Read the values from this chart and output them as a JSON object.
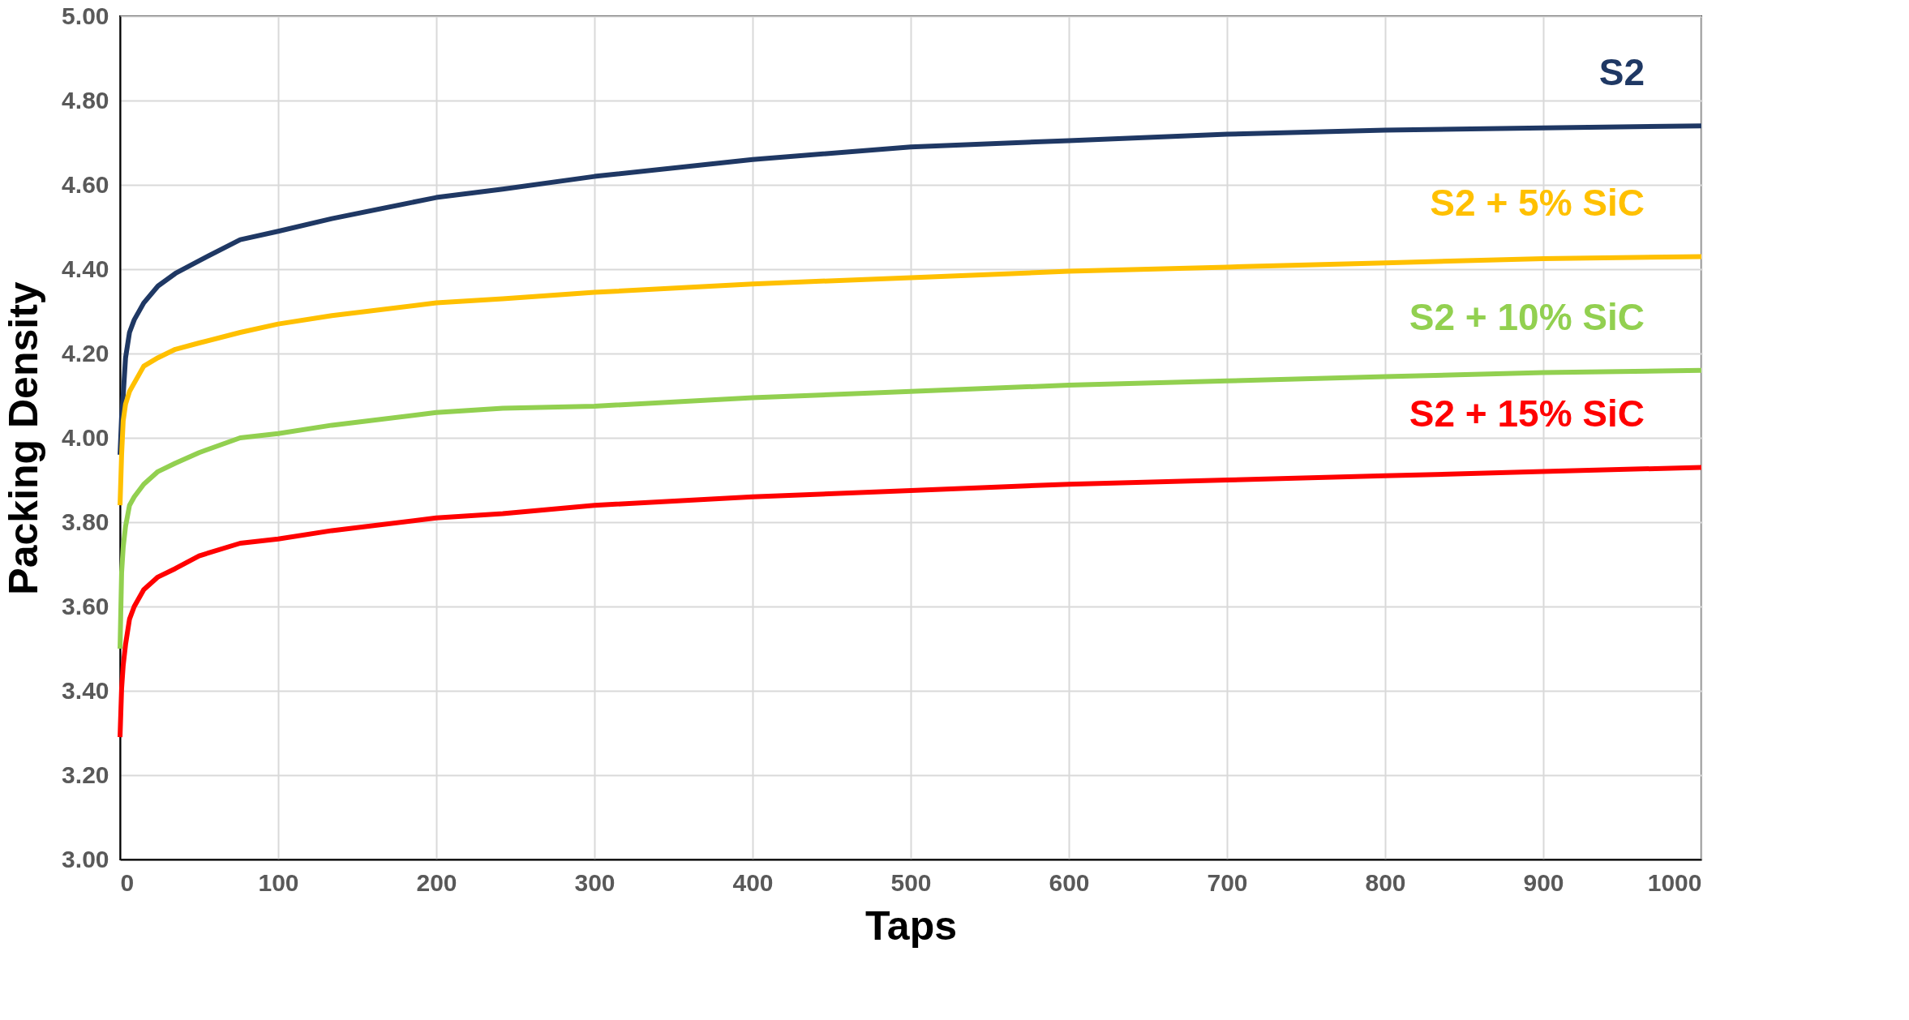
{
  "chart_data": {
    "type": "line",
    "xlabel": "Taps",
    "ylabel": "Packing Density",
    "xlim": [
      0,
      1000
    ],
    "xticks": [
      0,
      100,
      200,
      300,
      400,
      500,
      600,
      700,
      800,
      900,
      1000
    ],
    "ylim": [
      3.0,
      5.0
    ],
    "yticks": [
      {
        "value": 3.0,
        "label": "3.00"
      },
      {
        "value": 3.2,
        "label": "3.20"
      },
      {
        "value": 3.4,
        "label": "3.40"
      },
      {
        "value": 3.6,
        "label": "3.60"
      },
      {
        "value": 3.8,
        "label": "3.80"
      },
      {
        "value": 4.0,
        "label": "4.00"
      },
      {
        "value": 4.2,
        "label": "4.20"
      },
      {
        "value": 4.4,
        "label": "4.40"
      },
      {
        "value": 4.6,
        "label": "4.60"
      },
      {
        "value": 4.8,
        "label": "4.80"
      },
      {
        "value": 5.0,
        "label": "5.00"
      }
    ],
    "grid": true,
    "legend": false,
    "marker": "none",
    "line_style": "solid",
    "x": [
      0,
      1,
      2,
      3.5,
      6,
      9,
      15,
      24,
      35,
      50,
      76,
      100,
      134,
      200,
      242,
      300,
      400,
      500,
      600,
      700,
      800,
      900,
      1000
    ],
    "series": [
      {
        "name": "S2",
        "color": "#1f3864",
        "values": [
          3.96,
          4.05,
          4.1,
          4.19,
          4.25,
          4.28,
          4.32,
          4.36,
          4.39,
          4.42,
          4.47,
          4.49,
          4.52,
          4.57,
          4.59,
          4.62,
          4.66,
          4.69,
          4.705,
          4.72,
          4.73,
          4.735,
          4.74
        ]
      },
      {
        "name": "S2 + 5% SiC",
        "color": "#ffc000",
        "values": [
          3.84,
          3.96,
          4.04,
          4.08,
          4.11,
          4.13,
          4.17,
          4.19,
          4.21,
          4.225,
          4.25,
          4.27,
          4.29,
          4.32,
          4.33,
          4.345,
          4.365,
          4.38,
          4.395,
          4.405,
          4.415,
          4.425,
          4.43
        ]
      },
      {
        "name": "S2 + 10% SiC",
        "color": "#92d050",
        "values": [
          3.5,
          3.68,
          3.74,
          3.79,
          3.84,
          3.86,
          3.89,
          3.92,
          3.94,
          3.965,
          4.0,
          4.01,
          4.03,
          4.06,
          4.07,
          4.075,
          4.095,
          4.11,
          4.125,
          4.135,
          4.145,
          4.155,
          4.16
        ]
      },
      {
        "name": "S2 + 15% SiC",
        "color": "#ff0000",
        "values": [
          3.29,
          3.405,
          3.46,
          3.51,
          3.57,
          3.6,
          3.64,
          3.67,
          3.69,
          3.72,
          3.75,
          3.76,
          3.78,
          3.81,
          3.82,
          3.84,
          3.86,
          3.875,
          3.89,
          3.9,
          3.91,
          3.92,
          3.93
        ]
      }
    ]
  }
}
